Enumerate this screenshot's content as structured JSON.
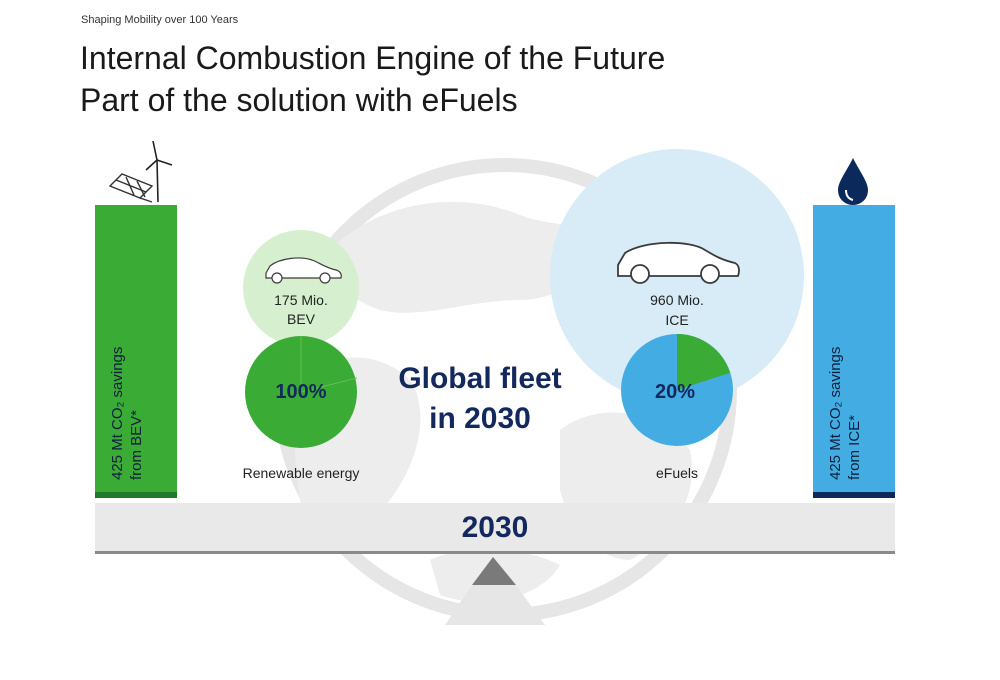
{
  "header": {
    "kicker": "Shaping Mobility over 100 Years",
    "title_line1": "Internal Combustion Engine of the Future",
    "title_line2": "Part of the solution with eFuels"
  },
  "left_bar": {
    "line1": "425 Mt CO₂ savings",
    "line2": "from BEV*",
    "color": "#3aab35",
    "base_color": "#1f7a2a"
  },
  "right_bar": {
    "line1": "425 Mt CO₂ savings",
    "line2": "from ICE*",
    "color": "#43ade3",
    "base_color": "#0b2a5b"
  },
  "bev": {
    "fleet_line1": "175 Mio.",
    "fleet_line2": "BEV",
    "pie_label": "100%",
    "pie_share": 1.0,
    "caption": "Renewable energy",
    "bubble_color": "#d6f0cf",
    "pie_color": "#3aab35"
  },
  "ice": {
    "fleet_line1": "960 Mio.",
    "fleet_line2": "ICE",
    "pie_label": "20%",
    "pie_share": 0.2,
    "caption": "eFuels",
    "bubble_color": "#d7ecf7",
    "pie_color": "#43ade3",
    "slice_color": "#3aab35"
  },
  "center": {
    "line1": "Global fleet",
    "line2": "in 2030",
    "color": "#13285c"
  },
  "balance": {
    "year": "2030"
  },
  "icons": {
    "left": [
      "solar-panel-icon",
      "wind-turbine-icon"
    ],
    "right": [
      "fuel-drop-icon"
    ],
    "cars": [
      "car-icon"
    ]
  }
}
